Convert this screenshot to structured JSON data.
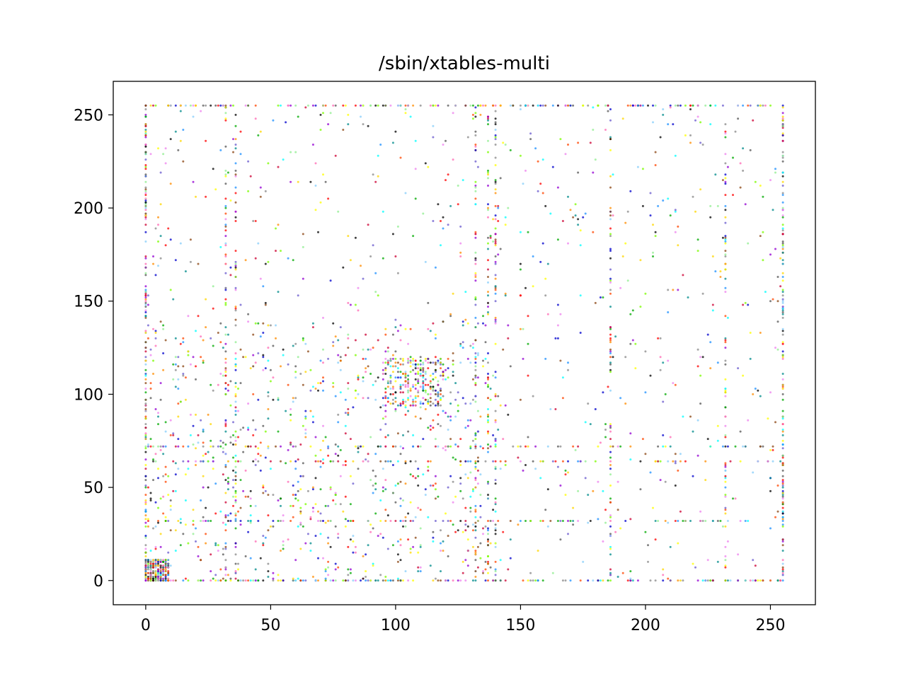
{
  "chart_data": {
    "type": "scatter",
    "title": "/sbin/xtables-multi",
    "xlabel": "",
    "ylabel": "",
    "xlim": [
      -13,
      268
    ],
    "ylim": [
      -13,
      268
    ],
    "x_ticks": [
      0,
      50,
      100,
      150,
      200,
      250
    ],
    "y_ticks": [
      0,
      50,
      100,
      150,
      200,
      250
    ],
    "grid": false,
    "colors": [
      "#000000",
      "#555555",
      "#888888",
      "#0000cc",
      "#6a5acd",
      "#1e90ff",
      "#87cefa",
      "#00ffff",
      "#008b8b",
      "#00aa00",
      "#7cfc00",
      "#90ee90",
      "#ffff00",
      "#ffd700",
      "#ff8c00",
      "#ff4500",
      "#ff0000",
      "#cc0033",
      "#ff69b4",
      "#ee82ee",
      "#9400d3",
      "#8b4513"
    ],
    "point_size_note": "tiny dots, one per byte-pair occurrence",
    "dense_lines": {
      "rows": [
        0,
        32,
        64,
        72,
        255
      ],
      "columns": [
        0,
        32,
        36,
        132,
        137,
        140,
        186,
        232,
        255
      ]
    },
    "dense_blocks": [
      {
        "x": [
          95,
          120
        ],
        "y": [
          94,
          120
        ]
      },
      {
        "x": [
          0,
          10
        ],
        "y": [
          0,
          12
        ]
      }
    ]
  }
}
